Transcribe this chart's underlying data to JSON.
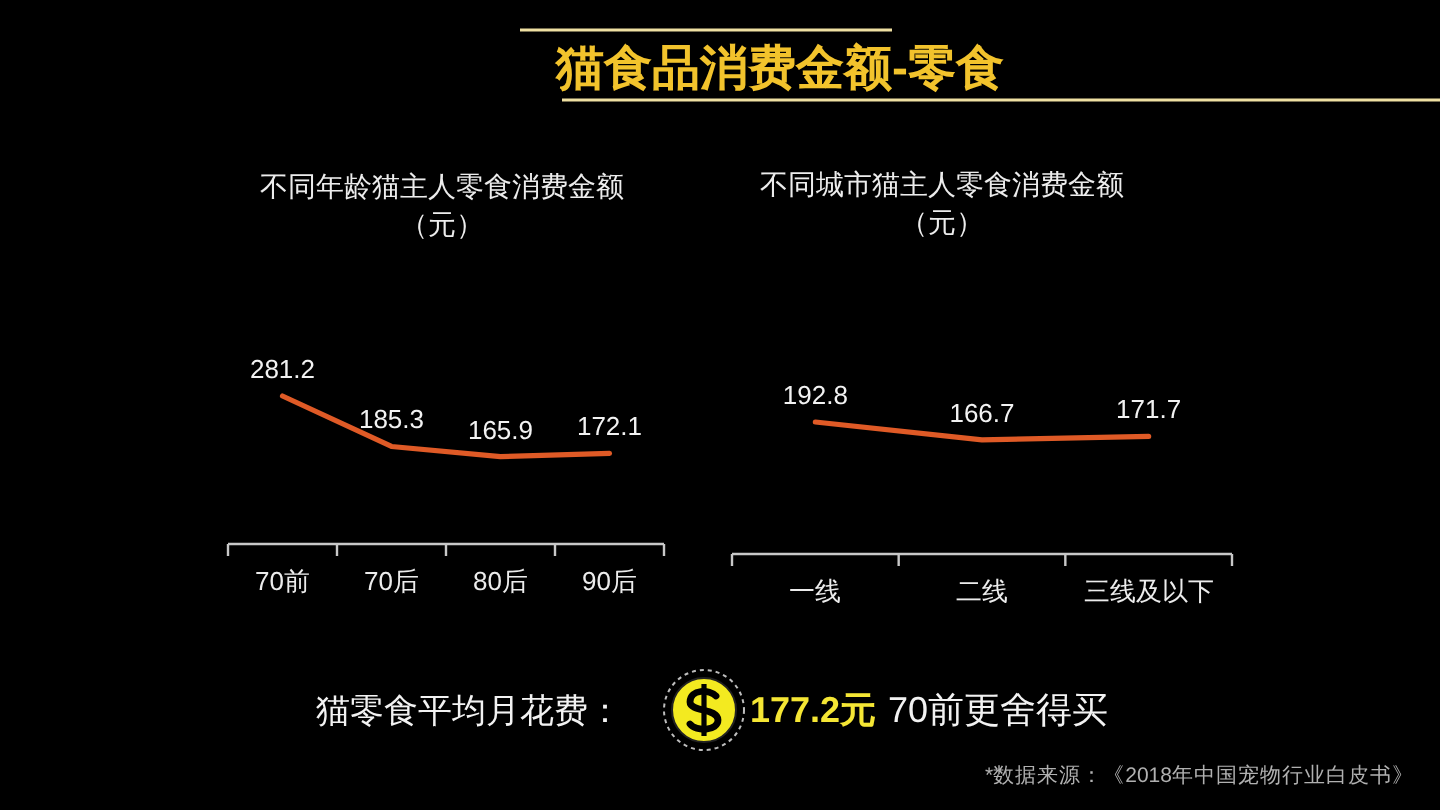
{
  "chart_data": [
    {
      "type": "other",
      "title": "猫食品消费金额-零食"
    },
    {
      "type": "line",
      "title": "不同年龄猫主人零食消费金额",
      "subtitle": "（元）",
      "categories": [
        "70前",
        "70后",
        "80后",
        "90后"
      ],
      "series": [
        {
          "color": "#df5a26",
          "values": [
            281.2,
            185.3,
            165.9,
            172.1
          ]
        }
      ],
      "data_labels": true,
      "tick_labels": "x"
    },
    {
      "type": "line",
      "title": "不同城市猫主人零食消费金额",
      "subtitle": "（元）",
      "categories": [
        "一线",
        "二线",
        "三线及以下"
      ],
      "series": [
        {
          "color": "#df5a26",
          "values": [
            192.8,
            166.7,
            171.7
          ]
        }
      ],
      "data_labels": true,
      "tick_labels": "x"
    },
    {
      "type": "other",
      "annotations": [
        "猫零食平均月花费：",
        "177.2元",
        "70前更舍得买",
        "*数据来源：《2018年中国宠物行业白皮书》"
      ]
    }
  ]
}
